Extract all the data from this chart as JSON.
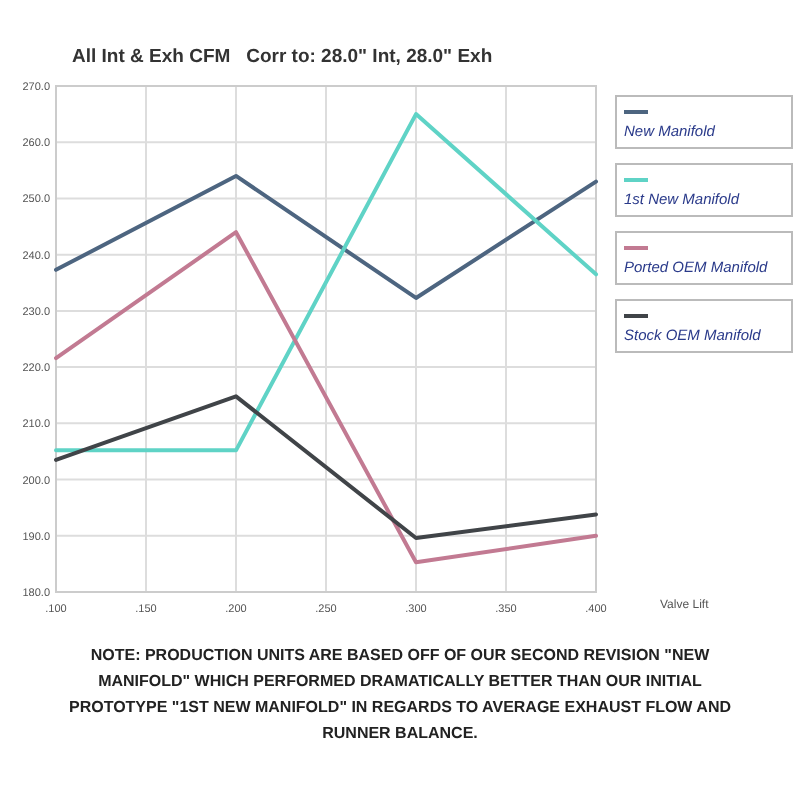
{
  "chart_data": {
    "type": "line",
    "title": "All Int & Exh CFM   Corr to: 28.0\" Int, 28.0\" Exh",
    "xlabel": "Valve Lift",
    "x": [
      0.1,
      0.2,
      0.3,
      0.4
    ],
    "series": [
      {
        "name": "New Manifold",
        "color": "#4d6580",
        "values": [
          237.3,
          254,
          232.3,
          253
        ]
      },
      {
        "name": "1st New Manifold",
        "color": "#5fd3c6",
        "values": [
          205.2,
          205.2,
          265,
          236.5
        ]
      },
      {
        "name": "Ported OEM Manifold",
        "color": "#c27a92",
        "values": [
          221.6,
          244,
          185.3,
          190
        ]
      },
      {
        "name": "Stock OEM Manifold",
        "color": "#404448",
        "values": [
          203.5,
          214.8,
          189.6,
          193.8
        ]
      }
    ],
    "xlim": [
      0.1,
      0.4
    ],
    "xticks": [
      {
        "value": 0.1,
        "label": ".100"
      },
      {
        "value": 0.15,
        "label": ".150"
      },
      {
        "value": 0.2,
        "label": ".200"
      },
      {
        "value": 0.25,
        "label": ".250"
      },
      {
        "value": 0.3,
        "label": ".300"
      },
      {
        "value": 0.35,
        "label": ".350"
      },
      {
        "value": 0.4,
        "label": ".400"
      }
    ],
    "ylim": [
      180,
      270
    ],
    "yticks": [
      {
        "value": 180,
        "label": "180.0"
      },
      {
        "value": 190,
        "label": "190.0"
      },
      {
        "value": 200,
        "label": "200.0"
      },
      {
        "value": 210,
        "label": "210.0"
      },
      {
        "value": 220,
        "label": "220.0"
      },
      {
        "value": 230,
        "label": "230.0"
      },
      {
        "value": 240,
        "label": "240.0"
      },
      {
        "value": 250,
        "label": "250.0"
      },
      {
        "value": 260,
        "label": "260.0"
      },
      {
        "value": 270,
        "label": "270.0"
      }
    ],
    "grid": true,
    "legend": "right",
    "line_style": "solid",
    "marker": "none",
    "annotations": [
      "NOTE: PRODUCTION UNITS ARE BASED OFF OF OUR SECOND REVISION \"NEW MANIFOLD\" WHICH PERFORMED DRAMATICALLY BETTER THAN OUR INITIAL PROTOTYPE \"1ST NEW MANIFOLD\" IN REGARDS TO AVERAGE EXHAUST FLOW AND RUNNER BALANCE."
    ]
  }
}
